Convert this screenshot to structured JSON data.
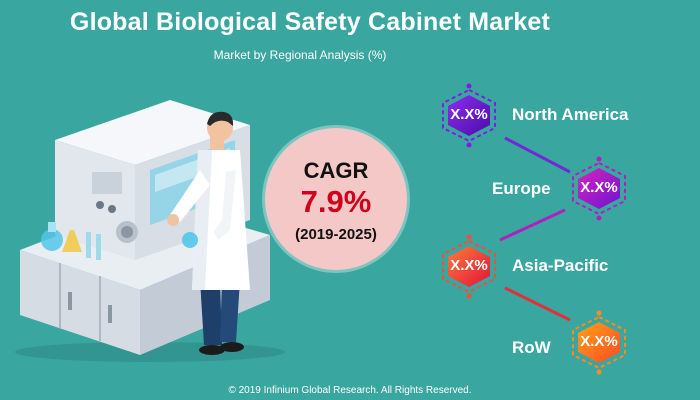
{
  "header": {
    "title": "Global Biological Safety Cabinet Market",
    "subtitle": "Market by Regional Analysis (%)"
  },
  "cagr": {
    "label": "CAGR",
    "value": "7.9%",
    "period": "(2019-2025)"
  },
  "regions": [
    {
      "name": "North America",
      "value": "X.X%",
      "color_a": "#7b1fe0",
      "color_b": "#5a10b8"
    },
    {
      "name": "Europe",
      "value": "X.X%",
      "color_a": "#c01cc8",
      "color_b": "#7a12d0"
    },
    {
      "name": "Asia-Pacific",
      "value": "X.X%",
      "color_a": "#ff6a3d",
      "color_b": "#e8183a"
    },
    {
      "name": "RoW",
      "value": "X.X%",
      "color_a": "#ff8a1e",
      "color_b": "#ff5a1e"
    }
  ],
  "footer": {
    "copyright": "© 2019 Infinium Global Research. All Rights Reserved."
  },
  "colors": {
    "background": "#3aa6a0",
    "cagr_circle": "#f3c8c6",
    "cagr_value": "#d0021b"
  }
}
